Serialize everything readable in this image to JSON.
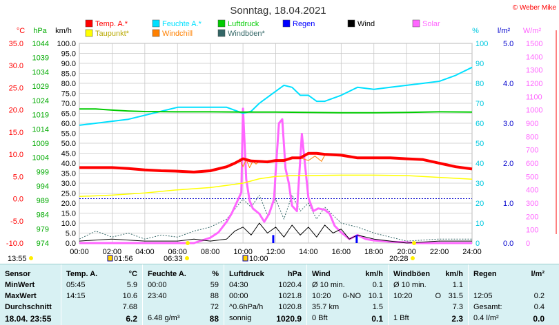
{
  "title": "Sonntag, 18.04.2021",
  "copyright": "© Weber Mike",
  "units": {
    "temp": "°C",
    "hpa": "hPa",
    "wind": "km/h",
    "humidity": "%",
    "rain": "l/m²",
    "solar": "W/m²"
  },
  "legend": [
    {
      "label": "Temp. A.*",
      "color": "#ff0000"
    },
    {
      "label": "Feuchte A.*",
      "color": "#00e0ff"
    },
    {
      "label": "Luftdruck",
      "color": "#00cc00"
    },
    {
      "label": "Regen",
      "color": "#0000ff"
    },
    {
      "label": "Wind",
      "color": "#000000"
    },
    {
      "label": "Solar",
      "color": "#ff66ff"
    },
    {
      "label": "Taupunkt*",
      "color": "#ffff00"
    },
    {
      "label": "Windchill",
      "color": "#ff8000"
    },
    {
      "label": "Windböen*",
      "color": "#336666"
    }
  ],
  "axes": {
    "x_ticks": [
      "00:00",
      "02:00",
      "04:00",
      "06:00",
      "08:00",
      "10:00",
      "12:00",
      "14:00",
      "16:00",
      "18:00",
      "20:00",
      "22:00",
      "24:00"
    ],
    "temp_ticks": [
      "35.0",
      "30.0",
      "25.0",
      "20.0",
      "15.0",
      "10.0",
      "5.0",
      "0.0",
      "-5.0",
      "-10.0"
    ],
    "hpa_ticks": [
      "1044",
      "1039",
      "1034",
      "1029",
      "1024",
      "1019",
      "1014",
      "1009",
      "1004",
      "999",
      "994",
      "989",
      "984",
      "979",
      "974"
    ],
    "wind_ticks": [
      "100.0",
      "95.0",
      "90.0",
      "85.0",
      "80.0",
      "75.0",
      "70.0",
      "65.0",
      "60.0",
      "55.0",
      "50.0",
      "45.0",
      "40.0",
      "35.0",
      "30.0",
      "25.0",
      "20.0",
      "15.0",
      "10.0",
      "5.0",
      "0.0"
    ],
    "hum_ticks": [
      "100",
      "90",
      "80",
      "70",
      "60",
      "50",
      "40",
      "30",
      "20",
      "10",
      "0"
    ],
    "rain_ticks": [
      "5.0",
      "4.0",
      "3.0",
      "2.0",
      "1.0",
      "0.0"
    ],
    "solar_ticks": [
      "1500",
      "1400",
      "1300",
      "1200",
      "1100",
      "1000",
      "900",
      "800",
      "700",
      "600",
      "500",
      "400",
      "300",
      "200",
      "100",
      "0"
    ]
  },
  "events": [
    {
      "label": "13:55"
    },
    {
      "label": "01:56"
    },
    {
      "label": "06:33"
    },
    {
      "label": "10:00"
    },
    {
      "label": "20:28"
    }
  ],
  "chart_data": {
    "type": "line",
    "title": "Sonntag, 18.04.2021",
    "x_range": [
      "00:00",
      "24:00"
    ],
    "series": [
      {
        "name": "Temp. A.*",
        "unit": "°C",
        "color": "#ff0000",
        "x": [
          0,
          1,
          2,
          3,
          4,
          5,
          6,
          7,
          8,
          9,
          9.5,
          10,
          10.5,
          11,
          11.5,
          12,
          12.5,
          13,
          13.5,
          14,
          14.5,
          15,
          16,
          17,
          18,
          19,
          20,
          21,
          22,
          23,
          24
        ],
        "values": [
          7.0,
          7.0,
          7.0,
          6.8,
          6.5,
          6.3,
          6.2,
          6.0,
          6.3,
          7.2,
          8.0,
          9.0,
          8.5,
          8.4,
          8.3,
          8.6,
          8.6,
          9.2,
          9.2,
          10.2,
          10.2,
          10.0,
          9.8,
          9.2,
          9.2,
          9.2,
          9.0,
          8.8,
          8.0,
          7.2,
          6.7
        ]
      },
      {
        "name": "Taupunkt*",
        "unit": "°C",
        "color": "#ffff00",
        "x": [
          0,
          2,
          4,
          6,
          8,
          9,
          10,
          11,
          12,
          13,
          14,
          16,
          18,
          20,
          22,
          24
        ],
        "values": [
          0.5,
          0.8,
          1.3,
          2.0,
          2.5,
          3.0,
          3.5,
          4.5,
          5.0,
          5.2,
          5.2,
          5.3,
          5.3,
          5.2,
          4.8,
          4.4
        ]
      },
      {
        "name": "Windchill",
        "unit": "°C",
        "color": "#ff8000",
        "x": [
          9.8,
          10,
          10.2,
          10.4,
          10.6,
          10.8,
          11,
          13.5,
          14,
          14.4,
          14.8,
          15
        ],
        "values": [
          9.0,
          7.2,
          8.8,
          7.0,
          8.4,
          7.8,
          8.4,
          9.2,
          8.6,
          9.6,
          8.4,
          9.8
        ]
      },
      {
        "name": "Luftdruck",
        "unit": "hPa",
        "color": "#00cc00",
        "x": [
          0,
          1,
          2,
          3,
          4,
          6,
          8,
          10,
          12,
          14,
          16,
          18,
          20,
          22,
          24
        ],
        "values": [
          1021.0,
          1021.0,
          1020.6,
          1020.3,
          1020.1,
          1020.0,
          1020.0,
          1019.9,
          1019.9,
          1019.8,
          1019.7,
          1019.7,
          1019.8,
          1020.0,
          1019.9
        ]
      },
      {
        "name": "Feuchte A.*",
        "unit": "%",
        "color": "#00e0ff",
        "x": [
          0,
          1,
          2,
          3,
          4,
          5,
          6,
          7,
          8,
          9,
          10,
          10.5,
          11,
          11.5,
          12,
          12.5,
          13,
          13.5,
          14,
          14.5,
          15,
          16,
          17,
          18,
          19,
          20,
          21,
          22,
          23,
          24
        ],
        "values": [
          59,
          60,
          61,
          62,
          64,
          66,
          68,
          68,
          68,
          68,
          65,
          66,
          70,
          73,
          76,
          79,
          78,
          74,
          74,
          71,
          71,
          74,
          78,
          77,
          78,
          79,
          80,
          81,
          84,
          88
        ]
      },
      {
        "name": "Wind",
        "unit": "km/h",
        "color": "#000000",
        "x": [
          0,
          2,
          4,
          6,
          7,
          8,
          9,
          9.5,
          10,
          10.5,
          11,
          11.5,
          12,
          12.5,
          13,
          13.5,
          14,
          14.5,
          15,
          15.5,
          16,
          16.5,
          17,
          18,
          19,
          20,
          22,
          24
        ],
        "values": [
          1,
          2,
          1,
          1,
          2,
          1,
          2,
          6,
          8,
          4,
          10,
          5,
          8,
          3,
          9,
          4,
          8,
          3,
          9,
          5,
          7,
          2,
          4,
          2,
          1,
          0,
          1,
          1
        ]
      },
      {
        "name": "Windböen*",
        "unit": "km/h",
        "color": "#336666",
        "x": [
          0,
          1,
          2,
          3,
          4,
          5,
          6,
          7,
          8,
          9,
          10,
          10.5,
          11,
          11.5,
          12,
          12.5,
          13,
          13.5,
          14,
          14.5,
          15,
          15.5,
          16,
          17,
          18,
          19,
          20,
          22,
          24
        ],
        "values": [
          2,
          6,
          3,
          5,
          2,
          4,
          3,
          6,
          8,
          12,
          22,
          18,
          24,
          14,
          22,
          12,
          24,
          16,
          20,
          12,
          18,
          14,
          10,
          8,
          5,
          3,
          1,
          2,
          2
        ]
      },
      {
        "name": "Solar",
        "unit": "W/m²",
        "color": "#ff66ff",
        "x": [
          0,
          7,
          8,
          8.5,
          9,
          9.3,
          9.6,
          9.9,
          10,
          10.2,
          10.4,
          10.6,
          11,
          11.3,
          11.6,
          11.9,
          12,
          12.2,
          12.4,
          12.6,
          12.8,
          13,
          13.3,
          13.6,
          14,
          14.3,
          14.6,
          15,
          15.3,
          15.6,
          16,
          16.5,
          17,
          17.5,
          18,
          19,
          20,
          20.5,
          24
        ],
        "values": [
          0,
          0,
          40,
          80,
          160,
          220,
          300,
          380,
          1010,
          480,
          320,
          260,
          220,
          160,
          220,
          330,
          540,
          900,
          930,
          560,
          450,
          280,
          240,
          820,
          340,
          240,
          260,
          250,
          220,
          130,
          80,
          30,
          60,
          30,
          20,
          10,
          5,
          0,
          0
        ]
      },
      {
        "name": "Regen",
        "unit": "l/m²",
        "color": "#0000ff",
        "x": [
          0,
          11.8,
          11.85,
          11.9,
          16.9,
          16.95,
          17.0,
          24
        ],
        "values": [
          0,
          0,
          0.2,
          0,
          0,
          0.2,
          0,
          0
        ]
      }
    ]
  },
  "stats": {
    "columns": [
      {
        "header": "Sensor",
        "unit": "",
        "rows": [
          "MinWert",
          "MaxWert",
          "Durchschnitt",
          "18.04. 23:55"
        ]
      },
      {
        "header": "Temp. A.",
        "unit": "°C",
        "times": [
          "05:45",
          "14:15",
          "",
          ""
        ],
        "values": [
          "5.9",
          "10.6",
          "7.68",
          "6.2"
        ]
      },
      {
        "header": "Feuchte A.",
        "unit": "%",
        "times": [
          "00:00",
          "23:40",
          "",
          "6.48 g/m³"
        ],
        "values": [
          "59",
          "88",
          "72",
          "88"
        ]
      },
      {
        "header": "Luftdruck",
        "unit": "hPa",
        "times": [
          "04:30",
          "00:00",
          "^0.6hPa/h",
          "sonnig"
        ],
        "values": [
          "1020.4",
          "1021.8",
          "1020.8",
          "1020.9"
        ]
      },
      {
        "header": "Wind",
        "unit": "km/h",
        "times": [
          "Ø 10 min.",
          "10:20",
          "35.7 km",
          "0 Bft"
        ],
        "extra": [
          "",
          "0-NO",
          "",
          ""
        ],
        "values": [
          "0.1",
          "10.1",
          "1.5",
          "0.1"
        ]
      },
      {
        "header": "Windböen",
        "unit": "km/h",
        "times": [
          "Ø 10 min.",
          "10:20",
          "",
          "1 Bft"
        ],
        "extra": [
          "",
          "O",
          "",
          ""
        ],
        "values": [
          "1.1",
          "31.5",
          "7.3",
          "2.3"
        ]
      },
      {
        "header": "Regen",
        "unit": "l/m²",
        "times": [
          "",
          "12:05",
          "Gesamt:",
          "0.4 l/m²"
        ],
        "values": [
          "",
          "0.2",
          "0.4",
          "0.0"
        ]
      }
    ]
  }
}
